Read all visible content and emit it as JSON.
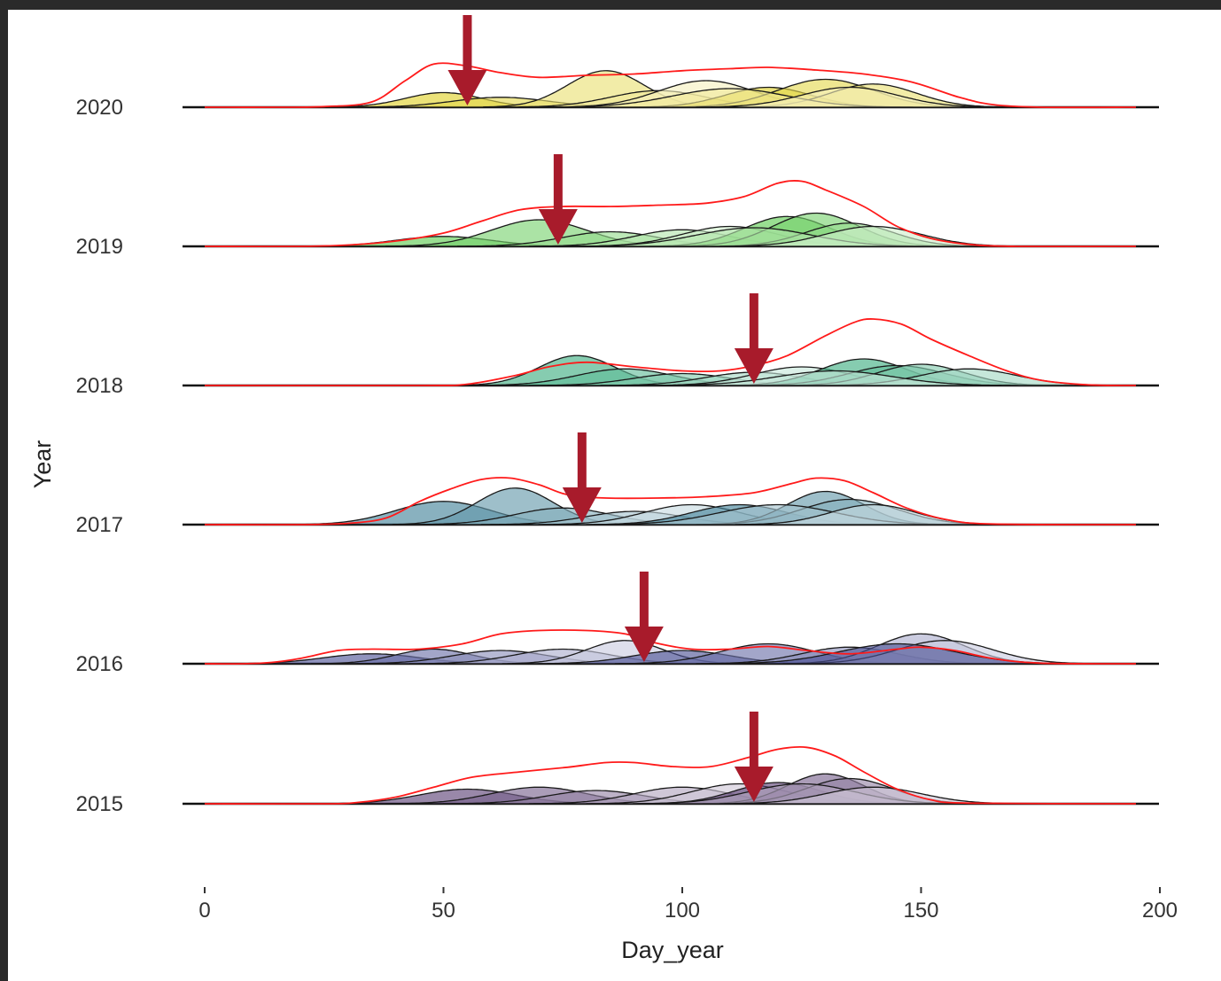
{
  "chart_data": {
    "type": "ridgeline",
    "xlabel": "Day_year",
    "ylabel": "Year",
    "xlim": [
      0,
      200
    ],
    "x_ticks": [
      0,
      50,
      100,
      150,
      200
    ],
    "grid": false,
    "legend": "none",
    "years": [
      {
        "label": "2020",
        "color": "#d9c800",
        "arrow_day": 55,
        "overall_density": [
          [
            0,
            0
          ],
          [
            15,
            0
          ],
          [
            25,
            0.01
          ],
          [
            35,
            0.08
          ],
          [
            42,
            0.4
          ],
          [
            48,
            0.65
          ],
          [
            55,
            0.62
          ],
          [
            62,
            0.52
          ],
          [
            70,
            0.45
          ],
          [
            80,
            0.48
          ],
          [
            90,
            0.5
          ],
          [
            100,
            0.55
          ],
          [
            110,
            0.58
          ],
          [
            118,
            0.6
          ],
          [
            128,
            0.56
          ],
          [
            138,
            0.5
          ],
          [
            148,
            0.38
          ],
          [
            158,
            0.15
          ],
          [
            165,
            0.04
          ],
          [
            175,
            0
          ],
          [
            195,
            0
          ]
        ],
        "individual_peaks": [
          [
            50,
            0.22,
            8
          ],
          [
            62,
            0.15,
            10
          ],
          [
            84,
            0.55,
            8
          ],
          [
            95,
            0.25,
            10
          ],
          [
            105,
            0.4,
            10
          ],
          [
            118,
            0.3,
            9
          ],
          [
            130,
            0.42,
            10
          ],
          [
            140,
            0.35,
            9
          ],
          [
            110,
            0.28,
            12
          ],
          [
            135,
            0.3,
            10
          ]
        ]
      },
      {
        "label": "2019",
        "color": "#3dbf2e",
        "arrow_day": 74,
        "overall_density": [
          [
            0,
            0
          ],
          [
            20,
            0
          ],
          [
            30,
            0.02
          ],
          [
            40,
            0.08
          ],
          [
            50,
            0.2
          ],
          [
            58,
            0.38
          ],
          [
            66,
            0.55
          ],
          [
            75,
            0.6
          ],
          [
            85,
            0.6
          ],
          [
            95,
            0.62
          ],
          [
            105,
            0.65
          ],
          [
            113,
            0.75
          ],
          [
            120,
            0.95
          ],
          [
            125,
            0.98
          ],
          [
            130,
            0.85
          ],
          [
            138,
            0.6
          ],
          [
            145,
            0.3
          ],
          [
            152,
            0.12
          ],
          [
            160,
            0.03
          ],
          [
            170,
            0
          ],
          [
            195,
            0
          ]
        ],
        "individual_peaks": [
          [
            50,
            0.15,
            10
          ],
          [
            70,
            0.4,
            10
          ],
          [
            85,
            0.22,
            10
          ],
          [
            100,
            0.25,
            10
          ],
          [
            110,
            0.3,
            10
          ],
          [
            122,
            0.45,
            9
          ],
          [
            128,
            0.5,
            9
          ],
          [
            135,
            0.35,
            9
          ],
          [
            115,
            0.28,
            12
          ],
          [
            140,
            0.3,
            10
          ]
        ]
      },
      {
        "label": "2018",
        "color": "#1a9e6a",
        "arrow_day": 115,
        "overall_density": [
          [
            0,
            0
          ],
          [
            45,
            0
          ],
          [
            55,
            0.02
          ],
          [
            65,
            0.15
          ],
          [
            72,
            0.28
          ],
          [
            80,
            0.35
          ],
          [
            90,
            0.28
          ],
          [
            100,
            0.22
          ],
          [
            108,
            0.22
          ],
          [
            115,
            0.3
          ],
          [
            122,
            0.45
          ],
          [
            130,
            0.75
          ],
          [
            136,
            0.95
          ],
          [
            140,
            1.0
          ],
          [
            146,
            0.92
          ],
          [
            152,
            0.7
          ],
          [
            160,
            0.45
          ],
          [
            168,
            0.22
          ],
          [
            175,
            0.08
          ],
          [
            185,
            0.01
          ],
          [
            195,
            0
          ]
        ],
        "individual_peaks": [
          [
            78,
            0.45,
            8
          ],
          [
            88,
            0.25,
            10
          ],
          [
            100,
            0.18,
            10
          ],
          [
            115,
            0.2,
            10
          ],
          [
            125,
            0.28,
            10
          ],
          [
            138,
            0.4,
            9
          ],
          [
            145,
            0.3,
            10
          ],
          [
            150,
            0.32,
            9
          ],
          [
            160,
            0.25,
            10
          ],
          [
            132,
            0.22,
            12
          ]
        ]
      },
      {
        "label": "2017",
        "color": "#1f6b86",
        "arrow_day": 79,
        "overall_density": [
          [
            0,
            0
          ],
          [
            20,
            0
          ],
          [
            30,
            0.02
          ],
          [
            38,
            0.1
          ],
          [
            45,
            0.35
          ],
          [
            52,
            0.55
          ],
          [
            58,
            0.68
          ],
          [
            64,
            0.7
          ],
          [
            70,
            0.6
          ],
          [
            76,
            0.45
          ],
          [
            84,
            0.4
          ],
          [
            95,
            0.4
          ],
          [
            105,
            0.42
          ],
          [
            115,
            0.48
          ],
          [
            123,
            0.62
          ],
          [
            128,
            0.7
          ],
          [
            134,
            0.66
          ],
          [
            140,
            0.48
          ],
          [
            147,
            0.25
          ],
          [
            155,
            0.08
          ],
          [
            165,
            0.01
          ],
          [
            195,
            0
          ]
        ],
        "individual_peaks": [
          [
            50,
            0.35,
            10
          ],
          [
            65,
            0.55,
            8
          ],
          [
            75,
            0.25,
            10
          ],
          [
            90,
            0.2,
            10
          ],
          [
            102,
            0.3,
            10
          ],
          [
            112,
            0.3,
            10
          ],
          [
            130,
            0.5,
            8
          ],
          [
            135,
            0.38,
            10
          ],
          [
            120,
            0.3,
            12
          ],
          [
            140,
            0.3,
            9
          ]
        ]
      },
      {
        "label": "2016",
        "color": "#2c3282",
        "arrow_day": 92,
        "overall_density": [
          [
            0,
            0
          ],
          [
            8,
            0
          ],
          [
            14,
            0.02
          ],
          [
            20,
            0.08
          ],
          [
            28,
            0.2
          ],
          [
            35,
            0.22
          ],
          [
            45,
            0.22
          ],
          [
            54,
            0.3
          ],
          [
            62,
            0.45
          ],
          [
            70,
            0.5
          ],
          [
            80,
            0.5
          ],
          [
            88,
            0.45
          ],
          [
            94,
            0.32
          ],
          [
            102,
            0.22
          ],
          [
            110,
            0.22
          ],
          [
            118,
            0.26
          ],
          [
            126,
            0.2
          ],
          [
            135,
            0.15
          ],
          [
            145,
            0.22
          ],
          [
            150,
            0.25
          ],
          [
            157,
            0.2
          ],
          [
            165,
            0.08
          ],
          [
            175,
            0.01
          ],
          [
            195,
            0
          ]
        ],
        "individual_peaks": [
          [
            35,
            0.15,
            10
          ],
          [
            48,
            0.22,
            8
          ],
          [
            62,
            0.2,
            10
          ],
          [
            75,
            0.22,
            10
          ],
          [
            88,
            0.35,
            8
          ],
          [
            100,
            0.2,
            10
          ],
          [
            118,
            0.3,
            10
          ],
          [
            135,
            0.25,
            10
          ],
          [
            150,
            0.45,
            9
          ],
          [
            155,
            0.35,
            10
          ],
          [
            145,
            0.3,
            12
          ]
        ]
      },
      {
        "label": "2015",
        "color": "#3d1d5c",
        "arrow_day": 115,
        "overall_density": [
          [
            0,
            0
          ],
          [
            25,
            0
          ],
          [
            32,
            0.02
          ],
          [
            40,
            0.1
          ],
          [
            48,
            0.25
          ],
          [
            56,
            0.4
          ],
          [
            66,
            0.48
          ],
          [
            76,
            0.55
          ],
          [
            84,
            0.62
          ],
          [
            90,
            0.62
          ],
          [
            98,
            0.56
          ],
          [
            106,
            0.56
          ],
          [
            114,
            0.7
          ],
          [
            120,
            0.82
          ],
          [
            126,
            0.85
          ],
          [
            132,
            0.72
          ],
          [
            138,
            0.48
          ],
          [
            145,
            0.22
          ],
          [
            152,
            0.06
          ],
          [
            160,
            0.01
          ],
          [
            195,
            0
          ]
        ],
        "individual_peaks": [
          [
            55,
            0.22,
            10
          ],
          [
            70,
            0.25,
            10
          ],
          [
            82,
            0.2,
            10
          ],
          [
            100,
            0.25,
            10
          ],
          [
            112,
            0.3,
            10
          ],
          [
            120,
            0.32,
            9
          ],
          [
            130,
            0.45,
            8
          ],
          [
            135,
            0.38,
            9
          ],
          [
            125,
            0.3,
            11
          ],
          [
            140,
            0.25,
            10
          ]
        ]
      }
    ]
  }
}
